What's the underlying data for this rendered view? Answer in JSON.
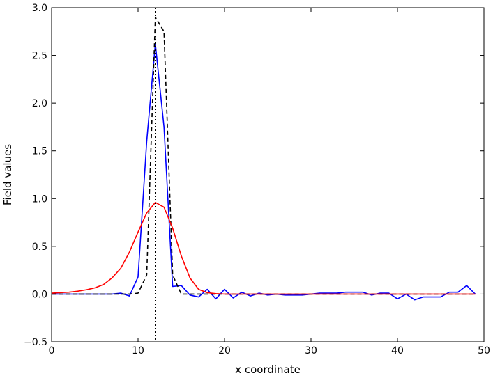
{
  "chart_data": {
    "type": "line",
    "title": "",
    "xlabel": "x coordinate",
    "ylabel": "Field values",
    "xlim": [
      0,
      50
    ],
    "ylim": [
      -0.5,
      3.0
    ],
    "xticks": [
      0,
      10,
      20,
      30,
      40,
      50
    ],
    "xtick_labels": [
      "0",
      "10",
      "20",
      "30",
      "40",
      "50"
    ],
    "yticks": [
      -0.5,
      0.0,
      0.5,
      1.0,
      1.5,
      2.0,
      2.5,
      3.0
    ],
    "ytick_labels": [
      "−0.5",
      "0.0",
      "0.5",
      "1.0",
      "1.5",
      "2.0",
      "2.5",
      "3.0"
    ],
    "grid": false,
    "legend": "none",
    "series": [
      {
        "color": "#0000ff",
        "linestyle": "solid",
        "x": [
          0,
          1,
          2,
          3,
          4,
          5,
          6,
          7,
          8,
          9,
          10,
          11,
          12,
          13,
          14,
          15,
          16,
          17,
          18,
          19,
          20,
          21,
          22,
          23,
          24,
          25,
          26,
          27,
          28,
          29,
          30,
          31,
          32,
          33,
          34,
          35,
          36,
          37,
          38,
          39,
          40,
          41,
          42,
          43,
          44,
          45,
          46,
          47,
          48,
          49
        ],
        "y": [
          0.0,
          0.0,
          0.0,
          0.0,
          0.0,
          0.0,
          0.0,
          0.0,
          0.01,
          -0.02,
          0.18,
          1.6,
          2.62,
          1.75,
          0.08,
          0.09,
          -0.01,
          -0.03,
          0.05,
          -0.05,
          0.05,
          -0.04,
          0.02,
          -0.02,
          0.01,
          -0.01,
          0.0,
          -0.01,
          -0.01,
          -0.01,
          0.0,
          0.01,
          0.01,
          0.01,
          0.02,
          0.02,
          0.02,
          -0.01,
          0.01,
          0.01,
          -0.05,
          0.0,
          -0.06,
          -0.03,
          -0.03,
          -0.03,
          0.02,
          0.02,
          0.09,
          0.0
        ]
      },
      {
        "color": "#000000",
        "linestyle": "dashed",
        "x": [
          0,
          1,
          2,
          3,
          4,
          5,
          6,
          7,
          8,
          9,
          10,
          11,
          12,
          13,
          14,
          15,
          16,
          17,
          18,
          19,
          20,
          21,
          22,
          23,
          24,
          25,
          26,
          27,
          28,
          29,
          30,
          31,
          32,
          33,
          34,
          35,
          36,
          37,
          38,
          39,
          40,
          41,
          42,
          43,
          44,
          45,
          46,
          47,
          48,
          49
        ],
        "y": [
          0,
          0,
          0,
          0,
          0,
          0,
          0,
          0,
          0,
          0,
          0.01,
          0.2,
          2.9,
          2.75,
          0.2,
          0.0,
          0,
          0,
          0,
          0,
          0,
          0,
          0,
          0,
          0,
          0,
          0,
          0,
          0,
          0,
          0,
          0,
          0,
          0,
          0,
          0,
          0,
          0,
          0,
          0,
          0,
          0,
          0,
          0,
          0,
          0,
          0,
          0,
          0,
          0
        ]
      },
      {
        "color": "#ff0000",
        "linestyle": "solid",
        "x": [
          0,
          1,
          2,
          3,
          4,
          5,
          6,
          7,
          8,
          9,
          10,
          11,
          12,
          13,
          14,
          15,
          16,
          17,
          18,
          19,
          20,
          21,
          22,
          23,
          24,
          25,
          26,
          27,
          28,
          29,
          30,
          31,
          32,
          33,
          34,
          35,
          36,
          37,
          38,
          39,
          40,
          41,
          42,
          43,
          44,
          45,
          46,
          47,
          48,
          49
        ],
        "y": [
          0.01,
          0.015,
          0.02,
          0.03,
          0.045,
          0.065,
          0.1,
          0.17,
          0.27,
          0.44,
          0.65,
          0.85,
          0.96,
          0.91,
          0.69,
          0.4,
          0.17,
          0.05,
          0.015,
          0.005,
          0,
          0,
          0,
          0,
          0,
          0,
          0,
          0,
          0,
          0,
          0,
          0,
          0,
          0,
          0,
          0,
          0,
          0,
          0,
          0,
          0,
          0,
          0,
          0,
          0,
          0,
          0,
          0,
          0,
          0
        ]
      }
    ],
    "vline": {
      "x": 12,
      "color": "#000000",
      "linestyle": "dotted"
    }
  }
}
